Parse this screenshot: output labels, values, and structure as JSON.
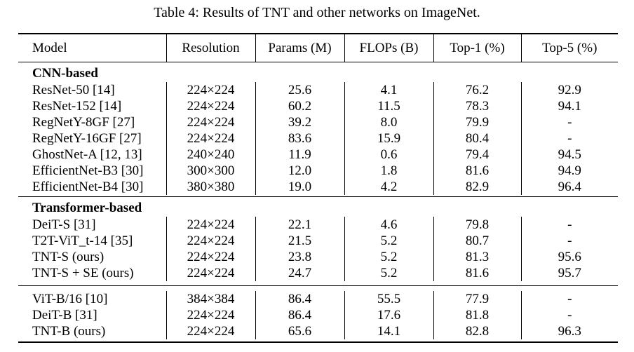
{
  "caption": "Table 4: Results of TNT and other networks on ImageNet.",
  "headers": [
    "Model",
    "Resolution",
    "Params (M)",
    "FLOPs (B)",
    "Top-1 (%)",
    "Top-5 (%)"
  ],
  "groups": [
    {
      "title": "CNN-based",
      "rows": [
        [
          "ResNet-50 [14]",
          "224×224",
          "25.6",
          "4.1",
          "76.2",
          "92.9"
        ],
        [
          "ResNet-152 [14]",
          "224×224",
          "60.2",
          "11.5",
          "78.3",
          "94.1"
        ],
        [
          "RegNetY-8GF [27]",
          "224×224",
          "39.2",
          "8.0",
          "79.9",
          "-"
        ],
        [
          "RegNetY-16GF [27]",
          "224×224",
          "83.6",
          "15.9",
          "80.4",
          "-"
        ],
        [
          "GhostNet-A [12, 13]",
          "240×240",
          "11.9",
          "0.6",
          "79.4",
          "94.5"
        ],
        [
          "EfficientNet-B3 [30]",
          "300×300",
          "12.0",
          "1.8",
          "81.6",
          "94.9"
        ],
        [
          "EfficientNet-B4 [30]",
          "380×380",
          "19.0",
          "4.2",
          "82.9",
          "96.4"
        ]
      ]
    },
    {
      "title": "Transformer-based",
      "rows": [
        [
          "DeiT-S [31]",
          "224×224",
          "22.1",
          "4.6",
          "79.8",
          "-"
        ],
        [
          "T2T-ViT_t-14 [35]",
          "224×224",
          "21.5",
          "5.2",
          "80.7",
          "-"
        ],
        [
          "TNT-S (ours)",
          "224×224",
          "23.8",
          "5.2",
          "81.3",
          "95.6"
        ],
        [
          "TNT-S + SE (ours)",
          "224×224",
          "24.7",
          "5.2",
          "81.6",
          "95.7"
        ]
      ]
    },
    {
      "title": "",
      "rows": [
        [
          "ViT-B/16 [10]",
          "384×384",
          "86.4",
          "55.5",
          "77.9",
          "-"
        ],
        [
          "DeiT-B [31]",
          "224×224",
          "86.4",
          "17.6",
          "81.8",
          "-"
        ],
        [
          "TNT-B (ours)",
          "224×224",
          "65.6",
          "14.1",
          "82.8",
          "96.3"
        ]
      ]
    }
  ]
}
